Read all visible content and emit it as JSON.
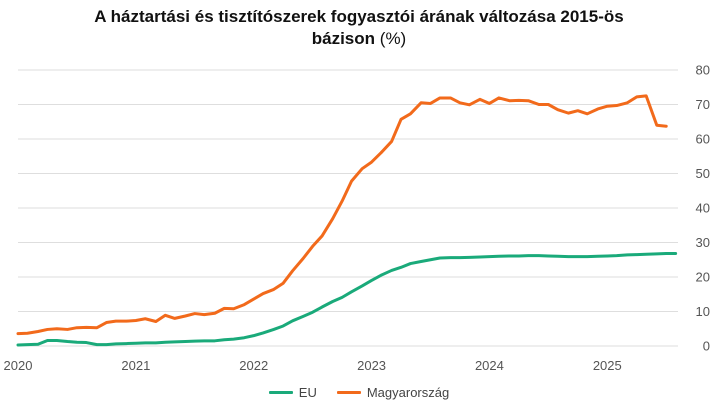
{
  "title": {
    "line1": "A háztartási és tisztítószerek fogyasztói árának változása 2015-ös",
    "line2": "bázison",
    "unit": "(%)"
  },
  "chart_data": {
    "type": "line",
    "x_range": [
      2020.0,
      2025.6
    ],
    "ylim": [
      0,
      80
    ],
    "y_ticks": [
      "0",
      "10",
      "20",
      "30",
      "40",
      "50",
      "60",
      "70",
      "80"
    ],
    "x_ticks": [
      "2020",
      "2021",
      "2022",
      "2023",
      "2024",
      "2025"
    ],
    "grid": true,
    "legend_position": "bottom",
    "series": [
      {
        "name": "EU",
        "color": "#1aaa7a",
        "points": [
          [
            2020.0,
            0.3
          ],
          [
            2020.08,
            0.4
          ],
          [
            2020.17,
            0.5
          ],
          [
            2020.25,
            1.6
          ],
          [
            2020.33,
            1.6
          ],
          [
            2020.42,
            1.3
          ],
          [
            2020.5,
            1.1
          ],
          [
            2020.58,
            1.0
          ],
          [
            2020.67,
            0.4
          ],
          [
            2020.75,
            0.4
          ],
          [
            2020.83,
            0.6
          ],
          [
            2020.92,
            0.7
          ],
          [
            2021.0,
            0.8
          ],
          [
            2021.08,
            0.9
          ],
          [
            2021.17,
            0.9
          ],
          [
            2021.25,
            1.1
          ],
          [
            2021.33,
            1.2
          ],
          [
            2021.42,
            1.3
          ],
          [
            2021.5,
            1.4
          ],
          [
            2021.58,
            1.5
          ],
          [
            2021.67,
            1.5
          ],
          [
            2021.75,
            1.8
          ],
          [
            2021.83,
            2.0
          ],
          [
            2021.92,
            2.4
          ],
          [
            2022.0,
            3.0
          ],
          [
            2022.08,
            3.8
          ],
          [
            2022.17,
            4.8
          ],
          [
            2022.25,
            5.8
          ],
          [
            2022.33,
            7.3
          ],
          [
            2022.42,
            8.6
          ],
          [
            2022.5,
            9.8
          ],
          [
            2022.58,
            11.3
          ],
          [
            2022.67,
            12.9
          ],
          [
            2022.75,
            14.1
          ],
          [
            2022.83,
            15.7
          ],
          [
            2022.92,
            17.4
          ],
          [
            2023.0,
            19.0
          ],
          [
            2023.08,
            20.5
          ],
          [
            2023.17,
            21.9
          ],
          [
            2023.25,
            22.8
          ],
          [
            2023.33,
            23.9
          ],
          [
            2023.42,
            24.5
          ],
          [
            2023.5,
            25.0
          ],
          [
            2023.58,
            25.5
          ],
          [
            2023.67,
            25.6
          ],
          [
            2023.75,
            25.6
          ],
          [
            2023.83,
            25.7
          ],
          [
            2023.92,
            25.8
          ],
          [
            2024.0,
            25.9
          ],
          [
            2024.08,
            26.0
          ],
          [
            2024.17,
            26.1
          ],
          [
            2024.25,
            26.1
          ],
          [
            2024.33,
            26.2
          ],
          [
            2024.42,
            26.2
          ],
          [
            2024.5,
            26.1
          ],
          [
            2024.58,
            26.0
          ],
          [
            2024.67,
            25.9
          ],
          [
            2024.75,
            25.9
          ],
          [
            2024.83,
            25.9
          ],
          [
            2024.92,
            26.0
          ],
          [
            2025.0,
            26.1
          ],
          [
            2025.08,
            26.2
          ],
          [
            2025.17,
            26.4
          ],
          [
            2025.25,
            26.5
          ],
          [
            2025.33,
            26.6
          ],
          [
            2025.42,
            26.7
          ],
          [
            2025.5,
            26.8
          ],
          [
            2025.58,
            26.8
          ]
        ]
      },
      {
        "name": "Magyarország",
        "color": "#f26a1b",
        "points": [
          [
            2020.0,
            3.6
          ],
          [
            2020.08,
            3.7
          ],
          [
            2020.17,
            4.2
          ],
          [
            2020.25,
            4.8
          ],
          [
            2020.33,
            5.0
          ],
          [
            2020.42,
            4.8
          ],
          [
            2020.5,
            5.3
          ],
          [
            2020.58,
            5.4
          ],
          [
            2020.67,
            5.3
          ],
          [
            2020.75,
            6.8
          ],
          [
            2020.83,
            7.2
          ],
          [
            2020.92,
            7.2
          ],
          [
            2021.0,
            7.4
          ],
          [
            2021.08,
            7.9
          ],
          [
            2021.17,
            7.1
          ],
          [
            2021.25,
            8.9
          ],
          [
            2021.33,
            8.0
          ],
          [
            2021.42,
            8.7
          ],
          [
            2021.5,
            9.4
          ],
          [
            2021.58,
            9.1
          ],
          [
            2021.67,
            9.5
          ],
          [
            2021.75,
            10.9
          ],
          [
            2021.83,
            10.8
          ],
          [
            2021.92,
            12.0
          ],
          [
            2022.0,
            13.6
          ],
          [
            2022.08,
            15.2
          ],
          [
            2022.17,
            16.4
          ],
          [
            2022.25,
            18.2
          ],
          [
            2022.33,
            21.8
          ],
          [
            2022.42,
            25.4
          ],
          [
            2022.5,
            28.9
          ],
          [
            2022.58,
            31.9
          ],
          [
            2022.67,
            36.9
          ],
          [
            2022.75,
            42.0
          ],
          [
            2022.83,
            47.8
          ],
          [
            2022.92,
            51.4
          ],
          [
            2023.0,
            53.3
          ],
          [
            2023.08,
            56.0
          ],
          [
            2023.17,
            59.3
          ],
          [
            2023.25,
            65.7
          ],
          [
            2023.33,
            67.3
          ],
          [
            2023.42,
            70.5
          ],
          [
            2023.5,
            70.3
          ],
          [
            2023.58,
            71.9
          ],
          [
            2023.67,
            71.9
          ],
          [
            2023.75,
            70.5
          ],
          [
            2023.83,
            69.9
          ],
          [
            2023.92,
            71.5
          ],
          [
            2024.0,
            70.3
          ],
          [
            2024.08,
            71.9
          ],
          [
            2024.17,
            71.1
          ],
          [
            2024.25,
            71.2
          ],
          [
            2024.33,
            71.1
          ],
          [
            2024.42,
            70.0
          ],
          [
            2024.5,
            70.0
          ],
          [
            2024.58,
            68.5
          ],
          [
            2024.67,
            67.5
          ],
          [
            2024.75,
            68.2
          ],
          [
            2024.83,
            67.3
          ],
          [
            2024.92,
            68.7
          ],
          [
            2025.0,
            69.5
          ],
          [
            2025.08,
            69.7
          ],
          [
            2025.17,
            70.5
          ],
          [
            2025.25,
            72.2
          ],
          [
            2025.33,
            72.5
          ],
          [
            2025.42,
            64.0
          ],
          [
            2025.5,
            63.7
          ]
        ]
      }
    ]
  }
}
